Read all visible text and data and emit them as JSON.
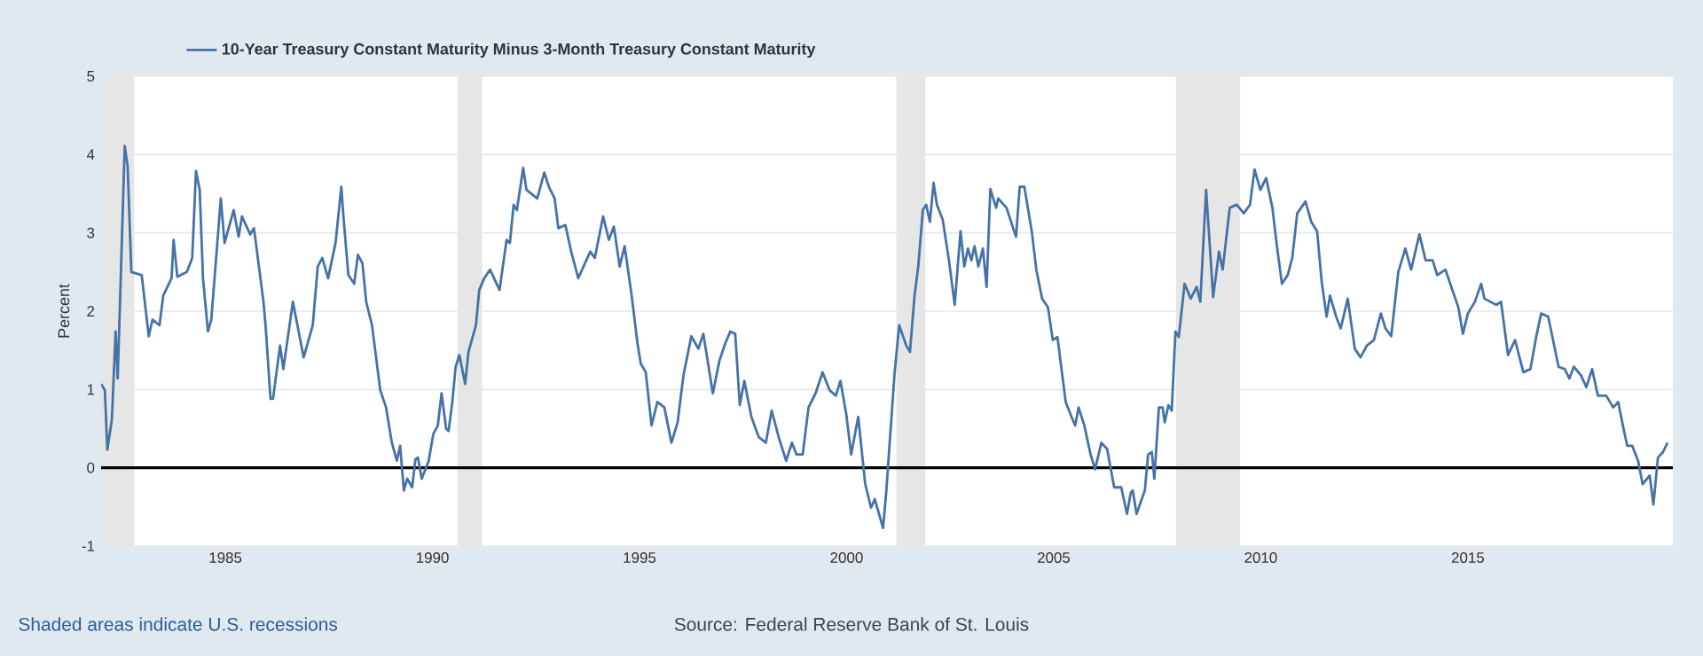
{
  "chart_data": {
    "type": "line",
    "ylabel": "Percent",
    "legend": "top",
    "grid": "y",
    "marker": "none",
    "line_style": "solid",
    "xlim": [
      1982,
      2019.95
    ],
    "xticks": [
      1985,
      1990,
      1995,
      2000,
      2005,
      2010,
      2015
    ],
    "ylim": [
      -1,
      5
    ],
    "yticks": [
      -1,
      0,
      1,
      2,
      3,
      4,
      5
    ],
    "series": [
      {
        "name": "10-Year Treasury Constant Maturity Minus 3-Month Treasury Constant Maturity",
        "color": "#4572a7",
        "x": [
          1982.0,
          1982.09,
          1982.15,
          1982.26,
          1982.35,
          1982.4,
          1982.57,
          1982.64,
          1982.73,
          1982.98,
          1983.15,
          1983.24,
          1983.41,
          1983.5,
          1983.7,
          1983.75,
          1983.84,
          1984.07,
          1984.2,
          1984.29,
          1984.38,
          1984.46,
          1984.58,
          1984.66,
          1984.89,
          1984.98,
          1985.2,
          1985.32,
          1985.4,
          1985.6,
          1985.69,
          1985.92,
          1985.97,
          1986.09,
          1986.15,
          1986.32,
          1986.4,
          1986.63,
          1986.89,
          1987.11,
          1987.23,
          1987.34,
          1987.48,
          1987.66,
          1987.8,
          1987.85,
          1987.97,
          1988.11,
          1988.2,
          1988.31,
          1988.4,
          1988.54,
          1988.74,
          1988.88,
          1989.02,
          1989.14,
          1989.22,
          1989.31,
          1989.39,
          1989.51,
          1989.59,
          1989.65,
          1989.74,
          1989.91,
          1990.02,
          1990.13,
          1990.22,
          1990.33,
          1990.39,
          1990.48,
          1990.56,
          1990.65,
          1990.79,
          1990.87,
          1991.05,
          1991.13,
          1991.25,
          1991.39,
          1991.62,
          1991.79,
          1991.87,
          1991.96,
          1992.04,
          1992.19,
          1992.27,
          1992.53,
          1992.7,
          1992.81,
          1992.95,
          1993.04,
          1993.21,
          1993.35,
          1993.52,
          1993.81,
          1993.92,
          1994.12,
          1994.26,
          1994.38,
          1994.52,
          1994.64,
          1994.81,
          1994.95,
          1995.03,
          1995.15,
          1995.29,
          1995.43,
          1995.6,
          1995.77,
          1995.92,
          1996.06,
          1996.25,
          1996.42,
          1996.54,
          1996.77,
          1996.93,
          1997.07,
          1997.19,
          1997.31,
          1997.42,
          1997.53,
          1997.7,
          1997.88,
          1998.05,
          1998.19,
          1998.36,
          1998.54,
          1998.68,
          1998.79,
          1998.94,
          1999.08,
          1999.25,
          1999.42,
          1999.59,
          1999.74,
          1999.85,
          1999.99,
          2000.11,
          2000.28,
          2000.45,
          2000.59,
          2000.68,
          2000.88,
          2000.96,
          2001.02,
          2001.16,
          2001.27,
          2001.44,
          2001.53,
          2001.64,
          2001.73,
          2001.84,
          2001.92,
          2002.01,
          2002.1,
          2002.18,
          2002.32,
          2002.47,
          2002.61,
          2002.75,
          2002.84,
          2002.93,
          2003.01,
          2003.09,
          2003.18,
          2003.29,
          2003.38,
          2003.47,
          2003.61,
          2003.66,
          2003.86,
          2004.09,
          2004.18,
          2004.29,
          2004.47,
          2004.58,
          2004.72,
          2004.86,
          2004.98,
          2005.09,
          2005.29,
          2005.43,
          2005.52,
          2005.6,
          2005.74,
          2005.89,
          2006.0,
          2006.15,
          2006.29,
          2006.46,
          2006.63,
          2006.77,
          2006.86,
          2006.91,
          2007.0,
          2007.2,
          2007.28,
          2007.37,
          2007.43,
          2007.54,
          2007.63,
          2007.68,
          2007.77,
          2007.85,
          2007.94,
          2008.02,
          2008.16,
          2008.31,
          2008.45,
          2008.54,
          2008.68,
          2008.85,
          2008.99,
          2009.08,
          2009.25,
          2009.42,
          2009.59,
          2009.74,
          2009.85,
          2009.99,
          2010.13,
          2010.28,
          2010.39,
          2010.51,
          2010.65,
          2010.76,
          2010.88,
          2011.08,
          2011.22,
          2011.36,
          2011.47,
          2011.59,
          2011.67,
          2011.82,
          2011.93,
          2012.1,
          2012.27,
          2012.41,
          2012.56,
          2012.73,
          2012.9,
          2013.01,
          2013.15,
          2013.32,
          2013.49,
          2013.63,
          2013.83,
          2013.98,
          2014.15,
          2014.26,
          2014.46,
          2014.6,
          2014.77,
          2014.88,
          2015.0,
          2015.17,
          2015.32,
          2015.4,
          2015.69,
          2015.8,
          2015.97,
          2016.14,
          2016.34,
          2016.51,
          2016.65,
          2016.77,
          2016.94,
          2017.19,
          2017.34,
          2017.45,
          2017.56,
          2017.73,
          2017.86,
          2018.0,
          2018.14,
          2018.34,
          2018.51,
          2018.63,
          2018.77,
          2018.85,
          2018.97,
          2019.11,
          2019.22,
          2019.39,
          2019.48,
          2019.59,
          2019.71,
          2019.82
        ],
        "values": [
          1.07,
          0.99,
          0.23,
          0.62,
          1.74,
          1.14,
          4.11,
          3.85,
          2.5,
          2.46,
          1.68,
          1.89,
          1.82,
          2.2,
          2.42,
          2.91,
          2.44,
          2.5,
          2.68,
          3.79,
          3.55,
          2.42,
          1.74,
          1.89,
          3.44,
          2.87,
          3.29,
          2.95,
          3.21,
          2.98,
          3.06,
          2.12,
          1.82,
          0.88,
          0.88,
          1.56,
          1.26,
          2.12,
          1.41,
          1.82,
          2.57,
          2.68,
          2.42,
          2.87,
          3.59,
          3.21,
          2.46,
          2.35,
          2.72,
          2.61,
          2.12,
          1.82,
          0.99,
          0.77,
          0.32,
          0.09,
          0.28,
          -0.29,
          -0.14,
          -0.25,
          0.11,
          0.13,
          -0.14,
          0.09,
          0.43,
          0.54,
          0.95,
          0.5,
          0.47,
          0.84,
          1.29,
          1.44,
          1.07,
          1.48,
          1.82,
          2.27,
          2.42,
          2.53,
          2.27,
          2.91,
          2.87,
          3.36,
          3.29,
          3.83,
          3.55,
          3.44,
          3.77,
          3.59,
          3.44,
          3.06,
          3.1,
          2.76,
          2.42,
          2.76,
          2.68,
          3.21,
          2.91,
          3.08,
          2.57,
          2.83,
          2.2,
          1.59,
          1.33,
          1.22,
          0.54,
          0.84,
          0.77,
          0.32,
          0.58,
          1.18,
          1.68,
          1.52,
          1.71,
          0.95,
          1.37,
          1.59,
          1.74,
          1.71,
          0.8,
          1.11,
          0.65,
          0.39,
          0.32,
          0.73,
          0.39,
          0.09,
          0.32,
          0.17,
          0.17,
          0.77,
          0.95,
          1.22,
          0.99,
          0.92,
          1.11,
          0.69,
          0.17,
          0.65,
          -0.21,
          -0.51,
          -0.4,
          -0.77,
          -0.29,
          0.17,
          1.22,
          1.82,
          1.56,
          1.48,
          2.2,
          2.57,
          3.29,
          3.36,
          3.14,
          3.64,
          3.36,
          3.17,
          2.65,
          2.08,
          3.02,
          2.57,
          2.8,
          2.65,
          2.83,
          2.57,
          2.8,
          2.31,
          3.56,
          3.32,
          3.44,
          3.32,
          2.95,
          3.59,
          3.59,
          3.02,
          2.53,
          2.16,
          2.05,
          1.63,
          1.67,
          0.84,
          0.65,
          0.54,
          0.77,
          0.54,
          0.17,
          -0.02,
          0.32,
          0.24,
          -0.25,
          -0.25,
          -0.59,
          -0.32,
          -0.29,
          -0.59,
          -0.29,
          0.17,
          0.2,
          -0.14,
          0.77,
          0.77,
          0.58,
          0.8,
          0.73,
          1.74,
          1.67,
          2.35,
          2.16,
          2.31,
          2.12,
          3.55,
          2.18,
          2.76,
          2.53,
          3.32,
          3.36,
          3.25,
          3.36,
          3.81,
          3.55,
          3.7,
          3.32,
          2.83,
          2.35,
          2.46,
          2.68,
          3.25,
          3.4,
          3.14,
          3.02,
          2.38,
          1.93,
          2.2,
          1.93,
          1.78,
          2.16,
          1.52,
          1.41,
          1.56,
          1.63,
          1.97,
          1.78,
          1.68,
          2.5,
          2.8,
          2.53,
          2.98,
          2.65,
          2.65,
          2.46,
          2.53,
          2.31,
          2.05,
          1.71,
          1.97,
          2.12,
          2.35,
          2.16,
          2.08,
          2.12,
          1.44,
          1.63,
          1.22,
          1.26,
          1.67,
          1.97,
          1.93,
          1.29,
          1.26,
          1.14,
          1.29,
          1.18,
          1.03,
          1.26,
          0.92,
          0.92,
          0.77,
          0.84,
          0.47,
          0.28,
          0.28,
          0.09,
          -0.21,
          -0.1,
          -0.47,
          0.13,
          0.2,
          0.32
        ]
      }
    ],
    "ref_lines": [
      {
        "axis": "y",
        "value": 0,
        "color": "#000000"
      }
    ],
    "bands": [
      {
        "axis": "x",
        "from": 1982,
        "to": 1982.8,
        "color": "#e6e6e6"
      },
      {
        "axis": "x",
        "from": 1990.6,
        "to": 1991.2,
        "color": "#e6e6e6"
      },
      {
        "axis": "x",
        "from": 2001.2,
        "to": 2001.9,
        "color": "#e6e6e6"
      },
      {
        "axis": "x",
        "from": 2007.95,
        "to": 2009.5,
        "color": "#e6e6e6"
      }
    ],
    "annotations": [
      "Shaded areas indicate U.S. recessions",
      "Source: Federal Reserve Bank of St. Louis"
    ]
  }
}
